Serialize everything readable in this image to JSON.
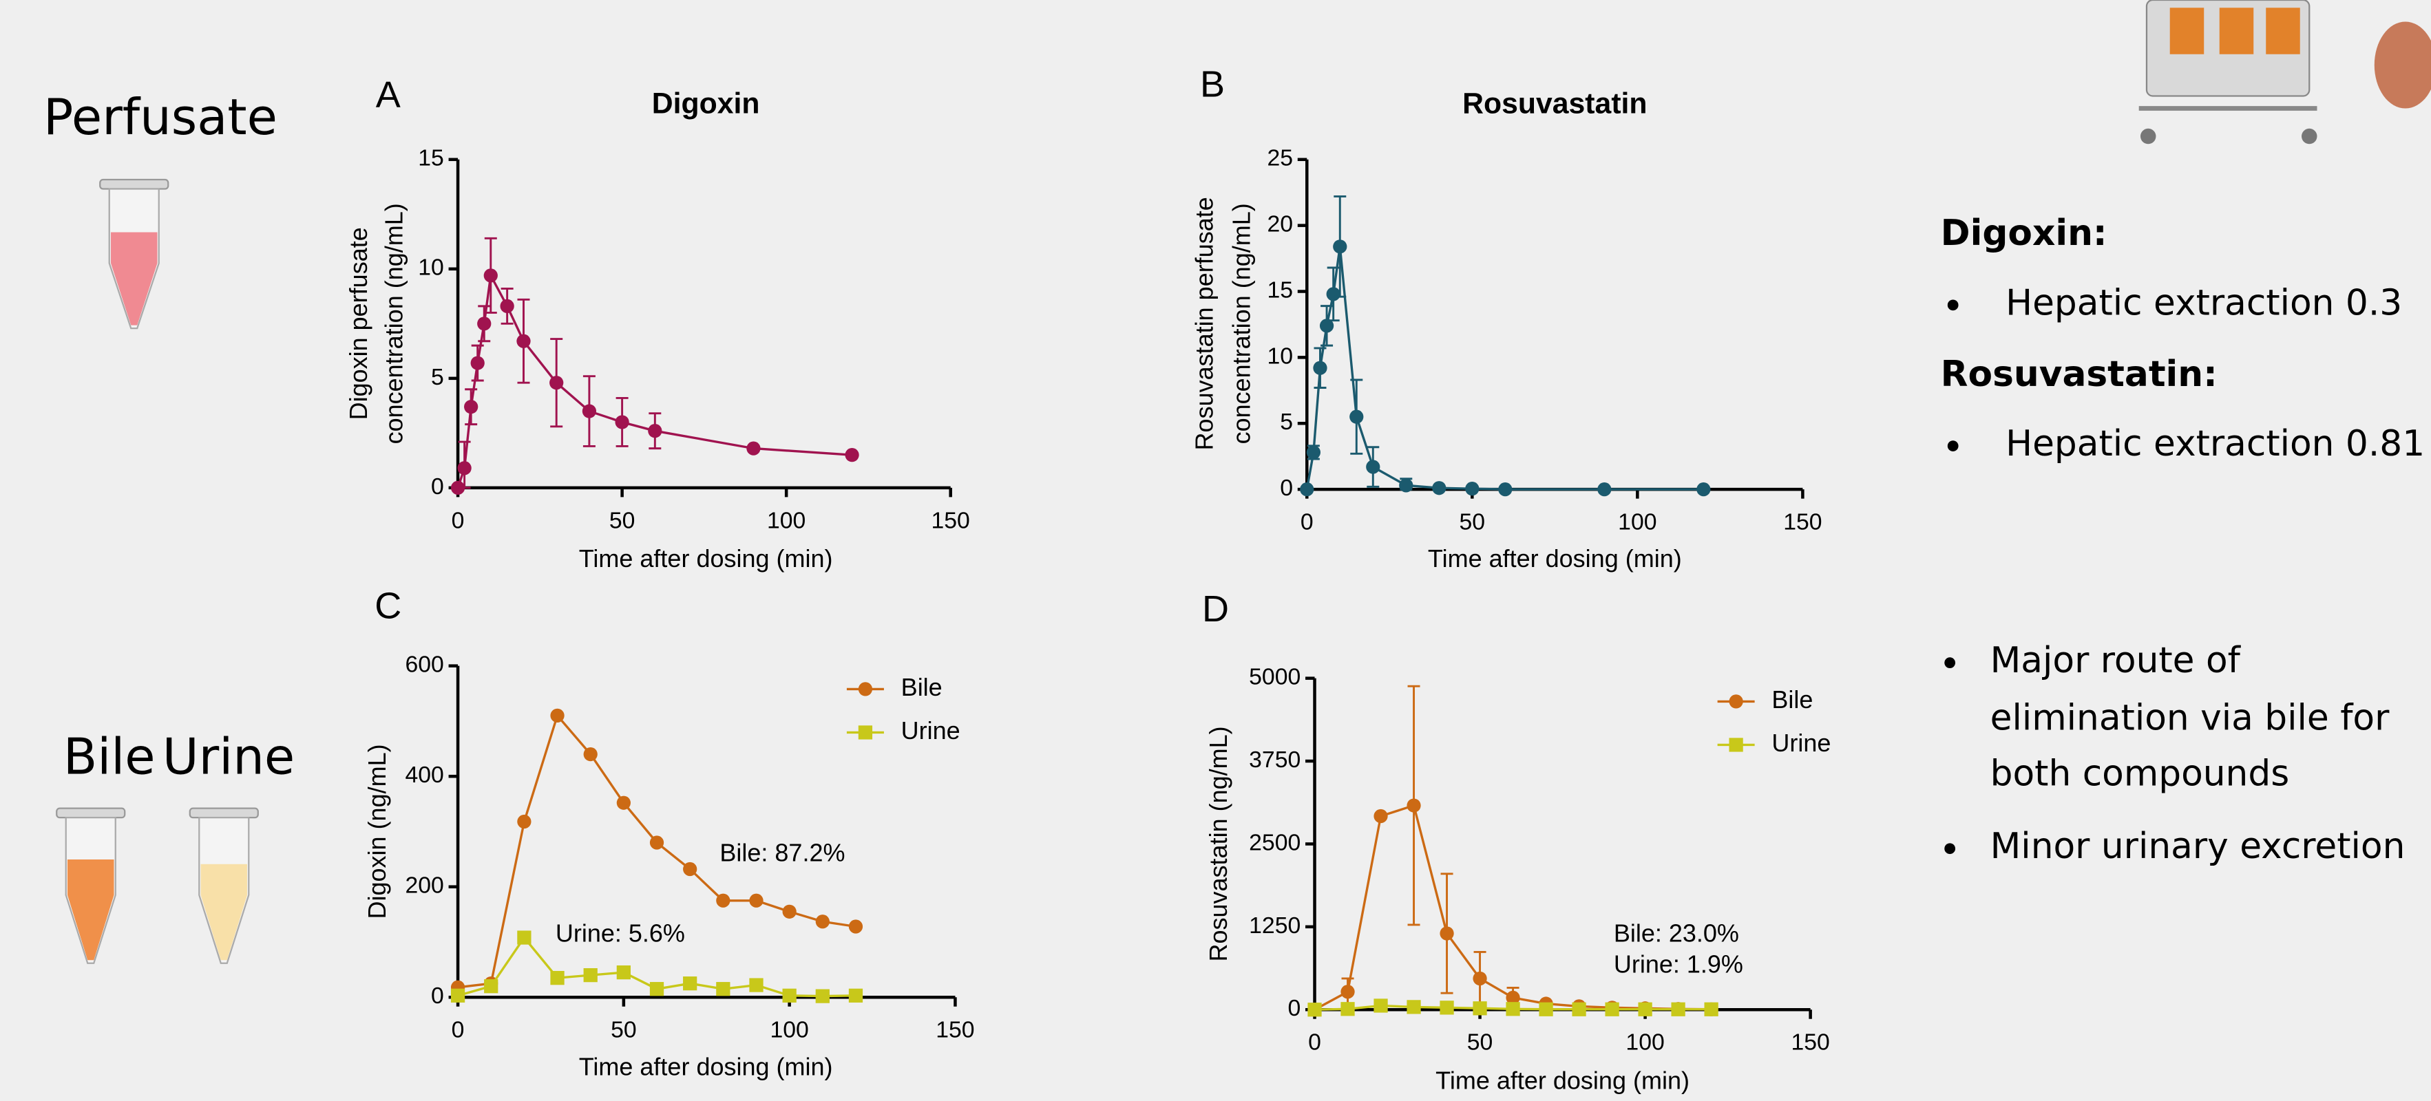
{
  "slide": {
    "perfusate": "Perfusate",
    "bile": "Bile",
    "urine": "Urine",
    "digoxin_heading": "Digoxin:",
    "digoxin_point": "Hepatic extraction 0.3",
    "rosuvastatin_heading": "Rosuvastatin:",
    "rosuvastatin_point": "Hepatic extraction 0.81",
    "major_route": [
      "Major route of",
      "elimination via bile for",
      "both compounds"
    ],
    "minor_route": "Minor urinary excretion"
  },
  "chart_data": [
    {
      "type": "line",
      "panel": "A",
      "title": "Digoxin",
      "ylabel": [
        "Digoxin perfusate",
        "concentration (ng/mL)"
      ],
      "xlabel": "Time after dosing (min)",
      "x": [
        0,
        2,
        4,
        6,
        8,
        10,
        15,
        20,
        30,
        40,
        50,
        60,
        90,
        120
      ],
      "series": [
        {
          "color": "#a0134f",
          "marker": "circle",
          "values": [
            0,
            0.9,
            3.7,
            5.7,
            7.5,
            9.7,
            8.3,
            6.7,
            4.8,
            3.5,
            3.0,
            2.6,
            1.8,
            1.5
          ],
          "errors": [
            null,
            1.2,
            0.8,
            0.8,
            0.8,
            1.7,
            0.8,
            1.9,
            2.0,
            1.6,
            1.1,
            0.8,
            null,
            null
          ]
        }
      ],
      "xlim": [
        0,
        150
      ],
      "xticks": [
        0,
        50,
        100,
        150
      ],
      "ylim": [
        0,
        15
      ],
      "yticks": [
        0,
        5,
        10,
        15
      ]
    },
    {
      "type": "line",
      "panel": "B",
      "title": "Rosuvastatin",
      "ylabel": [
        "Rosuvastatin perfusate",
        "concentration (ng/mL)"
      ],
      "xlabel": "Time after dosing (min)",
      "x": [
        0,
        2,
        4,
        6,
        8,
        10,
        15,
        20,
        30,
        40,
        50,
        60,
        90,
        120
      ],
      "series": [
        {
          "color": "#1b5a6e",
          "marker": "circle",
          "values": [
            0,
            2.8,
            9.2,
            12.4,
            14.8,
            18.4,
            5.5,
            1.7,
            0.3,
            0.1,
            0.05,
            0,
            0,
            0
          ],
          "errors": [
            null,
            0.5,
            1.5,
            1.5,
            2.0,
            3.8,
            2.8,
            1.5,
            0.5,
            null,
            null,
            null,
            null,
            null
          ]
        }
      ],
      "xlim": [
        0,
        150
      ],
      "xticks": [
        0,
        50,
        100,
        150
      ],
      "ylim": [
        0,
        25
      ],
      "yticks": [
        0,
        5,
        10,
        15,
        20,
        25
      ]
    },
    {
      "type": "line",
      "panel": "C",
      "ylabel": [
        "Digoxin (ng/mL)"
      ],
      "xlabel": "Time after dosing (min)",
      "x": [
        0,
        10,
        20,
        30,
        40,
        50,
        60,
        70,
        80,
        90,
        100,
        110,
        120
      ],
      "series": [
        {
          "name": "Bile",
          "color": "#cc6a14",
          "marker": "circle",
          "values": [
            18,
            25,
            318,
            510,
            440,
            352,
            280,
            232,
            175,
            175,
            155,
            137,
            128
          ]
        },
        {
          "name": "Urine",
          "color": "#c8c81a",
          "marker": "square",
          "values": [
            3,
            20,
            108,
            35,
            40,
            45,
            15,
            25,
            15,
            22,
            3,
            2,
            3
          ]
        }
      ],
      "annotations": [
        "Bile: 87.2%",
        "Urine: 5.6%"
      ],
      "xlim": [
        0,
        150
      ],
      "xticks": [
        0,
        50,
        100,
        150
      ],
      "ylim": [
        0,
        600
      ],
      "yticks": [
        0,
        200,
        400,
        600
      ],
      "legend": "top-right"
    },
    {
      "type": "line",
      "panel": "D",
      "ylabel": [
        "Rosuvastatin (ng/mL)"
      ],
      "xlabel": "Time after dosing (min)",
      "x": [
        0,
        10,
        20,
        30,
        40,
        50,
        60,
        70,
        80,
        90,
        100,
        110,
        120
      ],
      "series": [
        {
          "name": "Bile",
          "color": "#cc6a14",
          "marker": "circle",
          "values": [
            0,
            270,
            2920,
            3080,
            1150,
            470,
            180,
            90,
            50,
            30,
            20,
            10,
            5
          ],
          "errors": [
            null,
            200,
            null,
            1800,
            900,
            400,
            150,
            null,
            null,
            null,
            null,
            null,
            null
          ]
        },
        {
          "name": "Urine",
          "color": "#c8c81a",
          "marker": "square",
          "values": [
            0,
            10,
            60,
            40,
            30,
            20,
            10,
            5,
            5,
            5,
            5,
            5,
            5
          ]
        }
      ],
      "annotations": [
        "Bile: 23.0%",
        "Urine: 1.9%"
      ],
      "xlim": [
        0,
        150
      ],
      "xticks": [
        0,
        50,
        100,
        150
      ],
      "ylim": [
        0,
        5000
      ],
      "yticks": [
        0,
        1250,
        2500,
        3750,
        5000
      ],
      "legend": "top-right"
    }
  ]
}
